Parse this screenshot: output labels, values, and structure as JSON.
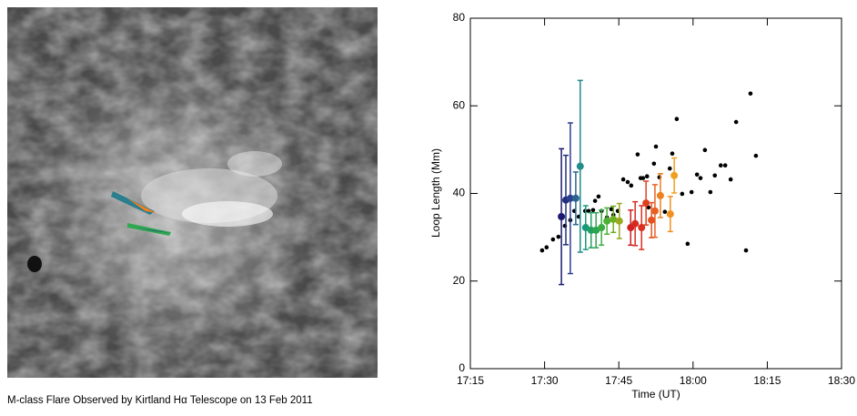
{
  "caption": "M-class Flare Observed by Kirtland Hα Telescope on 13 Feb 2011",
  "chart_data": {
    "type": "scatter",
    "x_label": "Time (UT)",
    "y_label": "Loop Length (Mm)",
    "xlim": [
      1035,
      1110
    ],
    "xticks": [
      {
        "value": 1035,
        "label": "17:15"
      },
      {
        "value": 1050,
        "label": "17:30"
      },
      {
        "value": 1065,
        "label": "17:45"
      },
      {
        "value": 1080,
        "label": "18:00"
      },
      {
        "value": 1095,
        "label": "18:15"
      },
      {
        "value": 1110,
        "label": "18:30"
      }
    ],
    "ylim": [
      0,
      80
    ],
    "yticks": [
      0,
      20,
      40,
      60,
      80
    ],
    "series": [
      {
        "color": "#000000",
        "x": [
          1049.5,
          1050.4,
          1051.7,
          1052.8,
          1054.1,
          1055.2,
          1056.0,
          1056.9,
          1058.2,
          1058.9,
          1059.8,
          1060.2,
          1060.9,
          1061.5,
          1062.6,
          1063.5,
          1063.9,
          1064.8,
          1065.9,
          1066.8,
          1067.5,
          1068.8,
          1069.4,
          1069.9,
          1070.7,
          1071.0,
          1072.1,
          1072.5,
          1073.2,
          1074.3,
          1075.3,
          1075.8,
          1076.7,
          1077.8,
          1078.9,
          1079.7,
          1080.8,
          1081.5,
          1082.4,
          1083.5,
          1084.4,
          1085.6,
          1086.5,
          1087.6,
          1088.7,
          1090.7,
          1091.6,
          1092.7
        ],
        "values": [
          27.0,
          27.7,
          29.5,
          30.1,
          32.6,
          33.9,
          36.0,
          34.7,
          36.0,
          36.0,
          36.2,
          38.3,
          39.3,
          36.0,
          34.5,
          36.4,
          35.1,
          36.0,
          43.2,
          42.6,
          41.8,
          48.9,
          43.5,
          43.5,
          43.9,
          36.8,
          46.8,
          50.7,
          43.7,
          35.8,
          45.7,
          49.1,
          57.0,
          39.9,
          28.5,
          40.3,
          44.3,
          43.5,
          49.9,
          40.3,
          44.1,
          46.4,
          46.4,
          43.2,
          56.3,
          27.0,
          62.8,
          48.6
        ]
      },
      {
        "colors": [
          "#1a1a6e",
          "#24307e",
          "#2b3f8e",
          "#2a6592",
          "#228b8b",
          "#1a9a7a",
          "#20a060",
          "#2ca452",
          "#3aac44",
          "#4cb034",
          "#70b020",
          "#98a820",
          "#d02020",
          "#d62a20",
          "#dc3020",
          "#e04020",
          "#e45020",
          "#e86020",
          "#ee8020",
          "#f09020",
          "#f0a020"
        ],
        "x": [
          1053.4,
          1054.3,
          1055.2,
          1056.3,
          1057.2,
          1058.3,
          1059.4,
          1060.4,
          1061.5,
          1062.6,
          1063.9,
          1065.1,
          1067.4,
          1068.3,
          1069.6,
          1070.5,
          1071.6,
          1072.3,
          1073.4,
          1075.4,
          1076.2
        ],
        "values": [
          34.7,
          38.5,
          38.9,
          38.9,
          46.2,
          32.2,
          31.6,
          31.6,
          32.2,
          33.7,
          34.1,
          33.7,
          32.2,
          33.1,
          32.2,
          37.8,
          33.9,
          36.0,
          39.5,
          35.3,
          44.1
        ],
        "errors": [
          15.5,
          10.2,
          17.2,
          6,
          19.6,
          5,
          4,
          4,
          4,
          3,
          3,
          4,
          4,
          5,
          5,
          5,
          4,
          6,
          5,
          4,
          4
        ]
      }
    ]
  }
}
